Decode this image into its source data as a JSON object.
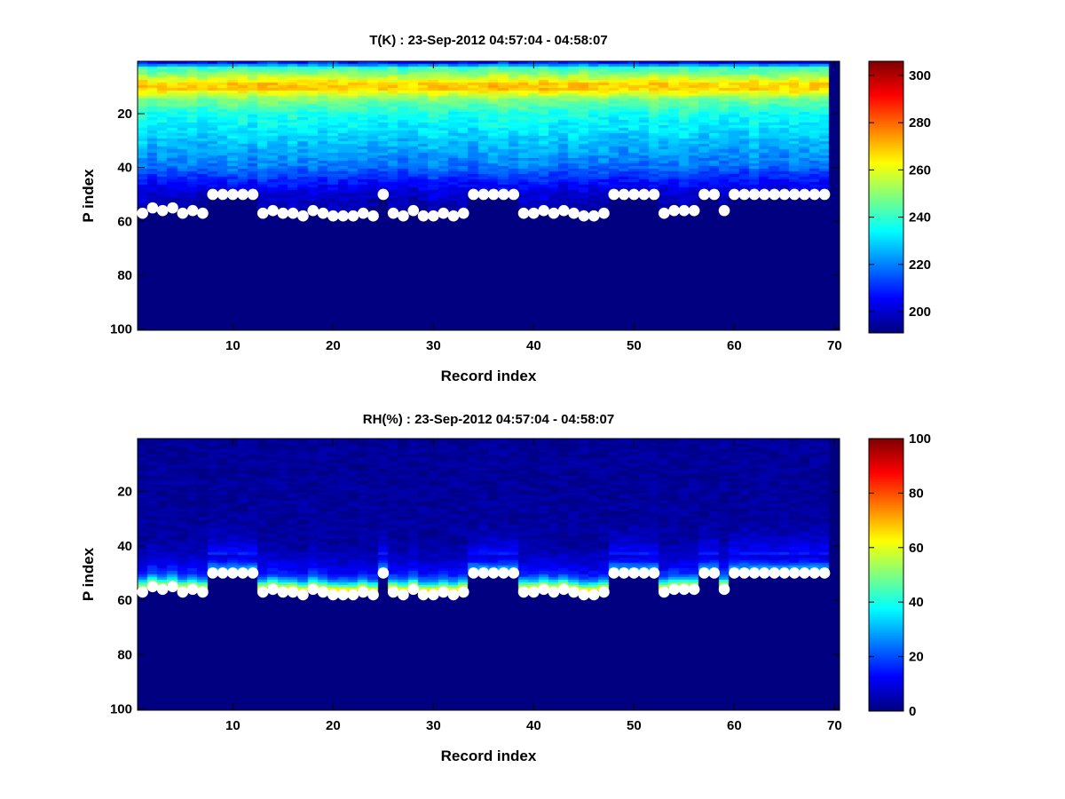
{
  "chart_data": [
    {
      "type": "heatmap",
      "title": "T(K) : 23-Sep-2012 04:57:04 - 04:58:07",
      "xlabel": "Record index",
      "ylabel": "P index",
      "xlim": [
        0.5,
        70.5
      ],
      "ylim": [
        0.5,
        100.5
      ],
      "y_reversed": true,
      "xticks": [
        10,
        20,
        30,
        40,
        50,
        60,
        70
      ],
      "yticks": [
        20,
        40,
        60,
        80,
        100
      ],
      "colormap": "jet",
      "clim": [
        191,
        306
      ],
      "colorbar_ticks": [
        200,
        220,
        240,
        260,
        280,
        300
      ],
      "profile_by_p_index": [
        [
          1,
          212
        ],
        [
          2,
          222
        ],
        [
          3,
          240
        ],
        [
          5,
          248
        ],
        [
          7,
          258
        ],
        [
          9,
          268
        ],
        [
          11,
          268
        ],
        [
          13,
          258
        ],
        [
          15,
          248
        ],
        [
          20,
          237
        ],
        [
          30,
          228
        ],
        [
          40,
          218
        ],
        [
          45,
          208
        ],
        [
          50,
          200
        ],
        [
          57,
          195
        ],
        [
          100,
          195
        ]
      ],
      "below_marker_value": 191,
      "marker_series": "surface P index"
    },
    {
      "type": "heatmap",
      "title": "RH(%) : 23-Sep-2012 04:57:04 - 04:58:07",
      "xlabel": "Record index",
      "ylabel": "P index",
      "xlim": [
        0.5,
        70.5
      ],
      "ylim": [
        0.5,
        100.5
      ],
      "y_reversed": true,
      "xticks": [
        10,
        20,
        30,
        40,
        50,
        60,
        70
      ],
      "yticks": [
        20,
        40,
        60,
        80,
        100
      ],
      "colormap": "jet",
      "clim": [
        0,
        100
      ],
      "colorbar_ticks": [
        0,
        20,
        40,
        60,
        80,
        100
      ],
      "profile_by_levels_above_marker": [
        [
          1,
          62
        ],
        [
          2,
          56
        ],
        [
          3,
          44
        ],
        [
          4,
          32
        ],
        [
          5,
          24
        ],
        [
          6,
          18
        ],
        [
          8,
          12
        ],
        [
          12,
          7
        ],
        [
          18,
          3
        ],
        [
          100,
          1
        ]
      ],
      "below_marker_value": 0,
      "marker_series": "surface P index"
    }
  ],
  "markers": {
    "records": [
      1,
      2,
      3,
      4,
      5,
      6,
      7,
      8,
      9,
      10,
      11,
      12,
      13,
      14,
      15,
      16,
      17,
      18,
      19,
      20,
      21,
      22,
      23,
      24,
      25,
      26,
      27,
      28,
      29,
      30,
      31,
      32,
      33,
      34,
      35,
      36,
      37,
      38,
      39,
      40,
      41,
      42,
      43,
      44,
      45,
      46,
      47,
      48,
      49,
      50,
      51,
      52,
      53,
      54,
      55,
      56,
      57,
      58,
      59,
      60,
      61,
      62,
      63,
      64,
      65,
      66,
      67,
      68,
      69
    ],
    "p_index": [
      57,
      55,
      56,
      55,
      57,
      56,
      57,
      50,
      50,
      50,
      50,
      50,
      57,
      56,
      57,
      57,
      58,
      56,
      57,
      58,
      58,
      58,
      57,
      58,
      50,
      57,
      58,
      56,
      58,
      58,
      57,
      58,
      57,
      50,
      50,
      50,
      50,
      50,
      57,
      57,
      56,
      57,
      56,
      57,
      58,
      58,
      57,
      50,
      50,
      50,
      50,
      50,
      57,
      56,
      56,
      56,
      50,
      50,
      56,
      50,
      50,
      50,
      50,
      50,
      50,
      50,
      50,
      50,
      50
    ],
    "color": "#ffffff"
  }
}
